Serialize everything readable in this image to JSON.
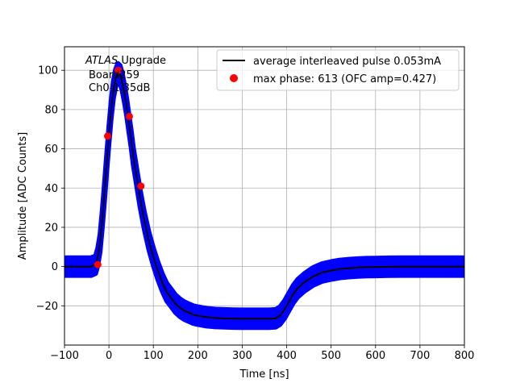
{
  "chart_data": {
    "type": "scatter",
    "xlabel": "Time [ns]",
    "ylabel": "Amplitude [ADC Counts]",
    "xlim": [
      -100,
      800
    ],
    "ylim": [
      -40,
      112
    ],
    "xticks": [
      -100,
      0,
      100,
      200,
      300,
      400,
      500,
      600,
      700,
      800
    ],
    "yticks": [
      -20,
      0,
      20,
      40,
      60,
      80,
      100
    ],
    "grid": true,
    "legend_position": "top-right",
    "annotation": {
      "line1_italic": "ATLAS",
      "line1_rest": " Upgrade",
      "line2": "Board259",
      "line3": "Ch0-1.35dB"
    },
    "series": [
      {
        "name": "average interleaved pulse 0.053mA",
        "kind": "line",
        "color": "#000000",
        "x": [
          -100,
          -40,
          -30,
          -25,
          -20,
          -15,
          -10,
          -5,
          0,
          5,
          10,
          15,
          20,
          25,
          30,
          35,
          40,
          45,
          50,
          55,
          60,
          65,
          70,
          75,
          80,
          90,
          100,
          110,
          120,
          130,
          140,
          150,
          160,
          170,
          180,
          190,
          200,
          220,
          240,
          260,
          280,
          300,
          320,
          340,
          360,
          375,
          385,
          395,
          405,
          415,
          425,
          440,
          460,
          480,
          500,
          520,
          540,
          560,
          580,
          600,
          630,
          660,
          700,
          750,
          800
        ],
        "y": [
          0,
          0,
          1,
          5,
          12,
          24,
          38,
          53,
          67,
          80,
          90,
          96,
          99,
          98,
          94,
          88,
          81,
          73,
          65,
          56,
          49,
          42,
          35,
          29,
          23,
          13,
          5,
          -2,
          -8,
          -13,
          -16,
          -19,
          -21,
          -22.5,
          -23.5,
          -24.5,
          -25,
          -25.8,
          -26.2,
          -26.4,
          -26.5,
          -26.6,
          -26.6,
          -26.6,
          -26.6,
          -26.4,
          -25,
          -22,
          -18,
          -14,
          -11,
          -8,
          -5,
          -3,
          -2,
          -1.2,
          -0.8,
          -0.5,
          -0.3,
          -0.2,
          -0.1,
          0,
          0,
          0,
          0
        ]
      },
      {
        "name": "max phase: 613 (OFC amp=0.427)",
        "kind": "points",
        "color": "#ff0000",
        "x": [
          -25,
          -3,
          21,
          46,
          72
        ],
        "y": [
          1,
          66.5,
          100,
          76.5,
          41
        ]
      },
      {
        "kind": "band",
        "color": "#0000ff",
        "x": [
          -100,
          -40,
          -30,
          -25,
          -20,
          -15,
          -10,
          -5,
          0,
          5,
          10,
          15,
          20,
          25,
          30,
          35,
          40,
          45,
          50,
          55,
          60,
          65,
          70,
          75,
          80,
          90,
          100,
          110,
          120,
          130,
          140,
          150,
          160,
          170,
          180,
          190,
          200,
          220,
          240,
          260,
          280,
          300,
          320,
          340,
          360,
          375,
          385,
          395,
          405,
          415,
          425,
          440,
          460,
          480,
          500,
          520,
          540,
          560,
          580,
          600,
          630,
          660,
          700,
          750,
          800
        ],
        "y": [
          0,
          0,
          1,
          5,
          12,
          24,
          38,
          53,
          67,
          80,
          90,
          96,
          99,
          98,
          94,
          88,
          81,
          73,
          65,
          56,
          49,
          42,
          35,
          29,
          23,
          13,
          5,
          -2,
          -8,
          -13,
          -16,
          -19,
          -21,
          -22.5,
          -23.5,
          -24.5,
          -25,
          -25.8,
          -26.2,
          -26.4,
          -26.5,
          -26.6,
          -26.6,
          -26.6,
          -26.6,
          -26.4,
          -25,
          -22,
          -18,
          -14,
          -11,
          -8,
          -5,
          -3,
          -2,
          -1.2,
          -0.8,
          -0.5,
          -0.3,
          -0.2,
          -0.1,
          0,
          0,
          0,
          0
        ],
        "spread": 4.5
      }
    ]
  }
}
